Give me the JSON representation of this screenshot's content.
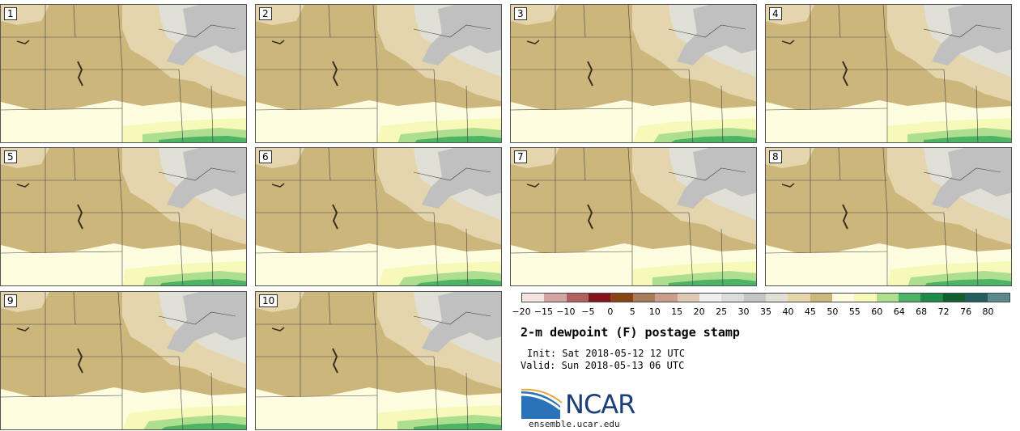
{
  "panels": [
    {
      "label": "1"
    },
    {
      "label": "2"
    },
    {
      "label": "3"
    },
    {
      "label": "4"
    },
    {
      "label": "5"
    },
    {
      "label": "6"
    },
    {
      "label": "7"
    },
    {
      "label": "8"
    },
    {
      "label": "9"
    },
    {
      "label": "10"
    }
  ],
  "colorbar": {
    "colors": [
      "#f5e4e4",
      "#d4a5a5",
      "#b26060",
      "#86141c",
      "#8a4515",
      "#a87a5c",
      "#c99f8c",
      "#dfc7b6",
      "#f0eeee",
      "#dcdcdc",
      "#c6c6c6",
      "#e0e0d6",
      "#e4d5ad",
      "#cdb67c",
      "#fffde0",
      "#f7f9b8",
      "#addf8e",
      "#4cb464",
      "#1c8a48",
      "#0f5d30",
      "#235e5c",
      "#5a8a8a"
    ],
    "ticks": [
      "−20",
      "−15",
      "−10",
      "−5",
      "0",
      "5",
      "10",
      "15",
      "20",
      "25",
      "30",
      "35",
      "40",
      "45",
      "50",
      "55",
      "60",
      "64",
      "68",
      "72",
      "76",
      "80"
    ]
  },
  "title": "2-m dewpoint (F) postage stamp",
  "init": "Init: Sat 2018-05-12 12 UTC",
  "valid": "Valid: Sun 2018-05-13 06 UTC",
  "logo": {
    "text": "NCAR",
    "site": "ensemble.ucar.edu"
  }
}
